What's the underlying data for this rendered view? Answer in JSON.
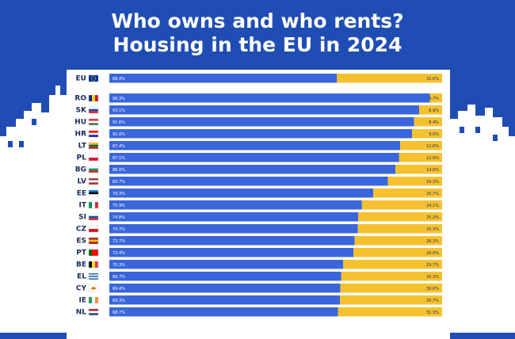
{
  "title": {
    "line1": "Who owns and who rents?",
    "line2": "Housing in the EU in 2024"
  },
  "colors": {
    "background": "#1f4db3",
    "owners": "#3a66db",
    "tenants": "#f5c12e",
    "text_dark": "#1a2a5a"
  },
  "chart_data": {
    "type": "bar",
    "orientation": "horizontal",
    "stacked": true,
    "title": "",
    "xlabel": "",
    "ylabel": "",
    "xlim": [
      0,
      100
    ],
    "categories": [
      "EU",
      "RO",
      "SK",
      "HU",
      "HR",
      "LT",
      "PL",
      "BG",
      "LV",
      "EE",
      "IT",
      "SI",
      "CZ",
      "ES",
      "PT",
      "BE",
      "EL",
      "CY",
      "IE",
      "NL"
    ],
    "series": [
      {
        "values": [
          68.4,
          96.3,
          93.1,
          91.6,
          91.0,
          87.4,
          87.1,
          86.0,
          83.7,
          79.3,
          75.9,
          74.8,
          74.7,
          73.7,
          73.4,
          70.3,
          69.7,
          69.4,
          69.3,
          68.7
        ]
      },
      {
        "values": [
          31.6,
          3.7,
          6.9,
          8.4,
          9.0,
          12.6,
          12.9,
          14.0,
          16.3,
          20.7,
          24.1,
          25.2,
          25.3,
          26.3,
          26.6,
          29.7,
          30.3,
          30.6,
          30.7,
          31.3
        ]
      }
    ],
    "owner_labels": [
      "68.4%",
      "96.3%",
      "93.1%",
      "91.6%",
      "91.0%",
      "87.4%",
      "87.1%",
      "86.0%",
      "83.7%",
      "79.3%",
      "75.9%",
      "74.8%",
      "74.7%",
      "73.7%",
      "73.4%",
      "70.3%",
      "69.7%",
      "69.4%",
      "69.3%",
      "68.7%"
    ],
    "tenant_labels": [
      "31.6%",
      "3.7%",
      "6.9%",
      "8.4%",
      "9.0%",
      "12.6%",
      "12.9%",
      "14.0%",
      "16.3%",
      "20.7%",
      "24.1%",
      "25.2%",
      "25.3%",
      "26.3%",
      "26.6%",
      "29.7%",
      "30.3%",
      "30.6%",
      "30.7%",
      "31.3%"
    ],
    "flags": [
      {
        "code": "EU",
        "type": "eu"
      },
      {
        "code": "RO",
        "type": "v",
        "colors": [
          "#002b7f",
          "#fcd116",
          "#ce1126"
        ]
      },
      {
        "code": "SK",
        "type": "h",
        "colors": [
          "#ffffff",
          "#0b4ea2",
          "#ee1c25"
        ]
      },
      {
        "code": "HU",
        "type": "h",
        "colors": [
          "#ce2939",
          "#ffffff",
          "#477050"
        ]
      },
      {
        "code": "HR",
        "type": "h",
        "colors": [
          "#ff0000",
          "#ffffff",
          "#171796"
        ]
      },
      {
        "code": "LT",
        "type": "h",
        "colors": [
          "#fdb913",
          "#006a44",
          "#c1272d"
        ]
      },
      {
        "code": "PL",
        "type": "h",
        "colors": [
          "#ffffff",
          "#dc143c"
        ]
      },
      {
        "code": "BG",
        "type": "h",
        "colors": [
          "#ffffff",
          "#00966e",
          "#d62612"
        ]
      },
      {
        "code": "LV",
        "type": "h",
        "colors": [
          "#9e3039",
          "#ffffff",
          "#9e3039"
        ]
      },
      {
        "code": "EE",
        "type": "h",
        "colors": [
          "#0072ce",
          "#000000",
          "#ffffff"
        ]
      },
      {
        "code": "IT",
        "type": "v",
        "colors": [
          "#009246",
          "#ffffff",
          "#ce2b37"
        ]
      },
      {
        "code": "SI",
        "type": "h",
        "colors": [
          "#ffffff",
          "#005da4",
          "#ed1c24"
        ]
      },
      {
        "code": "CZ",
        "type": "h",
        "colors": [
          "#ffffff",
          "#d7141a"
        ]
      },
      {
        "code": "ES",
        "type": "h",
        "colors": [
          "#aa151b",
          "#f1bf00",
          "#aa151b"
        ]
      },
      {
        "code": "PT",
        "type": "v",
        "colors": [
          "#006600",
          "#ff0000",
          "#ff0000"
        ]
      },
      {
        "code": "BE",
        "type": "v",
        "colors": [
          "#000000",
          "#fdda24",
          "#ef3340"
        ]
      },
      {
        "code": "EL",
        "type": "h",
        "colors": [
          "#0d5eaf",
          "#ffffff",
          "#0d5eaf",
          "#ffffff",
          "#0d5eaf"
        ]
      },
      {
        "code": "CY",
        "type": "h",
        "colors": [
          "#ffffff",
          "#ffffff"
        ]
      },
      {
        "code": "IE",
        "type": "v",
        "colors": [
          "#169b62",
          "#ffffff",
          "#ff883e"
        ]
      },
      {
        "code": "NL",
        "type": "h",
        "colors": [
          "#ae1c28",
          "#ffffff",
          "#21468b"
        ]
      }
    ]
  }
}
